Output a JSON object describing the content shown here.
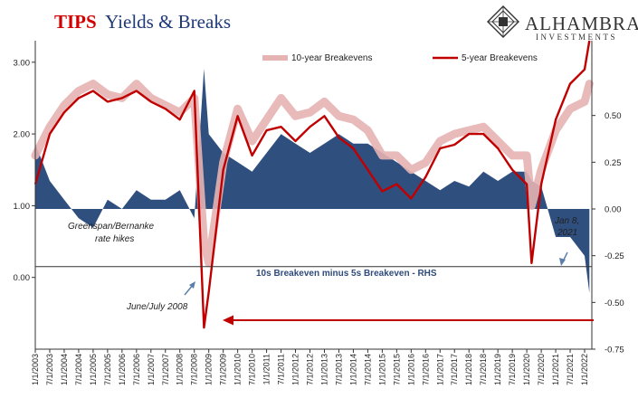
{
  "title": {
    "part1": "TIPS",
    "part2": "Yields & Breaks",
    "part1_color": "#d40000",
    "part2_color": "#1f3a78"
  },
  "logo": {
    "name": "ALHAMBRA",
    "sub": "INVESTMENTS"
  },
  "legend": {
    "tenYear": "10-year Breakevens",
    "fiveYear": "5-year Breakevens"
  },
  "annotations": {
    "greenspan_line1": "Greenspan/Bernanke",
    "greenspan_line2": "rate hikes",
    "june2008": "June/July 2008",
    "jan2021_line1": "Jan 8,",
    "jan2021_line2": "2021",
    "rhs_series": "10s Breakeven minus 5s Breakeven - RHS"
  },
  "chart_data": {
    "type": "area",
    "colors": {
      "tenYear": "#e6b3b3",
      "fiveYear": "#c00000",
      "spread": "#2f4f7f",
      "arrow": "#c00000"
    },
    "left_axis": {
      "ylim": [
        -1.0,
        3.3
      ],
      "ticks": [
        "3.00",
        "2.00",
        "1.00",
        "0.00"
      ],
      "tick_values": [
        3.0,
        2.0,
        1.0,
        0.0
      ]
    },
    "right_axis": {
      "ylim": [
        -0.75,
        0.9
      ],
      "ticks": [
        "0.50",
        "0.25",
        "0.00",
        "-0.25",
        "-0.50",
        "-0.75"
      ],
      "tick_values": [
        0.5,
        0.25,
        0.0,
        -0.25,
        -0.5,
        -0.75
      ]
    },
    "x_ticks": [
      "1/1/2003",
      "7/1/2003",
      "1/1/2004",
      "7/1/2004",
      "1/1/2005",
      "7/1/2005",
      "1/1/2006",
      "7/1/2006",
      "1/1/2007",
      "7/1/2007",
      "1/1/2008",
      "7/1/2008",
      "1/1/2009",
      "7/1/2009",
      "1/1/2010",
      "7/1/2010",
      "1/1/2011",
      "7/1/2011",
      "1/1/2012",
      "7/1/2012",
      "1/1/2013",
      "7/1/2013",
      "1/1/2014",
      "7/1/2014",
      "1/1/2015",
      "7/1/2015",
      "1/1/2016",
      "7/1/2016",
      "1/1/2017",
      "7/1/2017",
      "1/1/2018",
      "7/1/2018",
      "1/1/2019",
      "7/1/2019",
      "1/1/2020",
      "7/1/2020",
      "1/1/2021",
      "7/1/2021",
      "1/1/2022"
    ],
    "x": [
      "2003-01",
      "2003-07",
      "2004-01",
      "2004-07",
      "2005-01",
      "2005-07",
      "2006-01",
      "2006-07",
      "2007-01",
      "2007-07",
      "2008-01",
      "2008-07",
      "2008-11",
      "2009-01",
      "2009-07",
      "2010-01",
      "2010-07",
      "2011-01",
      "2011-07",
      "2012-01",
      "2012-07",
      "2013-01",
      "2013-07",
      "2014-01",
      "2014-07",
      "2015-01",
      "2015-07",
      "2016-01",
      "2016-07",
      "2017-01",
      "2017-07",
      "2018-01",
      "2018-07",
      "2019-01",
      "2019-07",
      "2020-01",
      "2020-03",
      "2020-07",
      "2021-01",
      "2021-07",
      "2022-01",
      "2022-03"
    ],
    "series": [
      {
        "name": "10-year Breakevens",
        "axis": "left",
        "values": [
          1.7,
          2.1,
          2.4,
          2.6,
          2.7,
          2.55,
          2.5,
          2.7,
          2.5,
          2.4,
          2.3,
          2.5,
          0.5,
          0.2,
          1.6,
          2.35,
          1.9,
          2.2,
          2.5,
          2.25,
          2.3,
          2.45,
          2.25,
          2.2,
          2.05,
          1.7,
          1.7,
          1.5,
          1.6,
          1.9,
          2.0,
          2.05,
          2.1,
          1.9,
          1.7,
          1.7,
          1.0,
          1.5,
          2.05,
          2.35,
          2.45,
          2.7
        ]
      },
      {
        "name": "5-year Breakevens",
        "axis": "left",
        "values": [
          1.3,
          2.0,
          2.3,
          2.5,
          2.6,
          2.45,
          2.5,
          2.6,
          2.45,
          2.35,
          2.2,
          2.6,
          -0.7,
          -0.2,
          1.5,
          2.25,
          1.7,
          2.05,
          2.1,
          1.9,
          2.1,
          2.25,
          1.95,
          1.8,
          1.5,
          1.2,
          1.3,
          1.1,
          1.4,
          1.8,
          1.85,
          2.0,
          2.0,
          1.8,
          1.5,
          1.3,
          0.2,
          1.3,
          2.2,
          2.7,
          2.9,
          3.3
        ]
      },
      {
        "name": "10s Breakeven minus 5s Breakeven - RHS",
        "axis": "right",
        "values": [
          0.35,
          0.15,
          0.05,
          -0.05,
          -0.1,
          0.05,
          0.0,
          0.1,
          0.05,
          0.05,
          0.1,
          -0.05,
          0.75,
          0.4,
          0.3,
          0.25,
          0.2,
          0.3,
          0.4,
          0.35,
          0.3,
          0.35,
          0.4,
          0.35,
          0.35,
          0.3,
          0.25,
          0.2,
          0.15,
          0.1,
          0.15,
          0.12,
          0.2,
          0.15,
          0.2,
          0.2,
          0.15,
          0.12,
          -0.15,
          -0.15,
          -0.25,
          -0.45
        ]
      }
    ]
  }
}
